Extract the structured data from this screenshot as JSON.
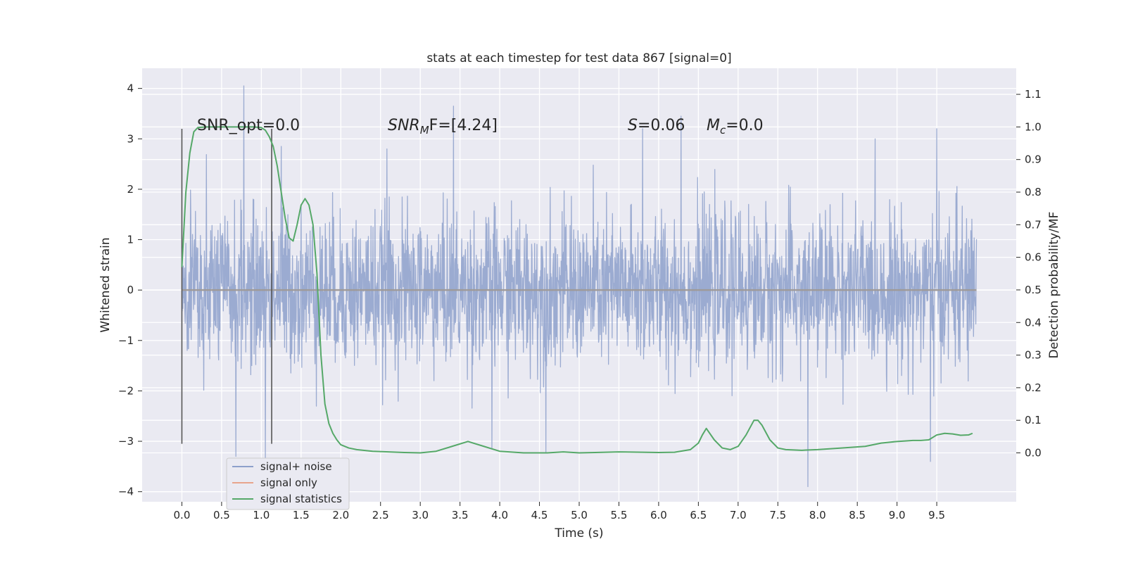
{
  "chart_data": {
    "type": "line",
    "title": "stats at each timestep for test data 867 [signal=0]",
    "xlabel": "Time (s)",
    "ylabel": "Whitened strain",
    "ylabel_right": "Detection probability/MF",
    "xlim": [
      -0.5,
      10.5
    ],
    "ylim": [
      -4.2,
      4.4
    ],
    "ylim_right": [
      -0.15,
      1.18
    ],
    "x_ticks": [
      "0.0",
      "0.5",
      "1.0",
      "1.5",
      "2.0",
      "2.5",
      "3.0",
      "3.5",
      "4.0",
      "4.5",
      "5.0",
      "5.5",
      "6.0",
      "6.5",
      "7.0",
      "7.5",
      "8.0",
      "8.5",
      "9.0",
      "9.5"
    ],
    "y_ticks": [
      "4",
      "3",
      "2",
      "1",
      "0",
      "−1",
      "−2",
      "−3",
      "−4"
    ],
    "y_ticks_right": [
      "1.1",
      "1.0",
      "0.9",
      "0.8",
      "0.7",
      "0.6",
      "0.5",
      "0.4",
      "0.3",
      "0.2",
      "0.1",
      "0.0"
    ],
    "grid": true,
    "legend_position": "bottom-left",
    "annotations": {
      "snr_opt": "SNR_opt=0.0",
      "snr_mf_label": "SNR",
      "snr_mf_sub": "M",
      "snr_mf_tail": "F=[4.24]",
      "s_label": "S",
      "s_value": "=0.06",
      "mc_label": "M",
      "mc_sub": "c",
      "mc_value": "=0.0"
    },
    "vertical_lines": [
      0.0,
      1.13
    ],
    "series": [
      {
        "name": "signal+ noise",
        "color": "#8da0cb",
        "noise_std": 0.75,
        "x_range": [
          0.0,
          10.0
        ],
        "spikes": [
          [
            0.78,
            4.05
          ],
          [
            0.68,
            -3.3
          ],
          [
            1.05,
            -3.35
          ],
          [
            3.42,
            3.65
          ],
          [
            3.9,
            -3.15
          ],
          [
            6.28,
            3.45
          ],
          [
            5.8,
            3.2
          ],
          [
            7.88,
            -3.9
          ],
          [
            9.42,
            -3.4
          ],
          [
            9.5,
            3.2
          ],
          [
            4.58,
            -3.22
          ],
          [
            2.58,
            2.8
          ],
          [
            1.25,
            2.85
          ]
        ]
      },
      {
        "name": "signal only",
        "color": "#e8a58c",
        "x": [
          0.0,
          10.0
        ],
        "values": [
          0.0,
          0.0
        ]
      },
      {
        "name": "signal statistics",
        "color": "#55a868",
        "axis": "right",
        "x": [
          0.0,
          0.05,
          0.1,
          0.15,
          0.2,
          0.3,
          0.5,
          0.7,
          0.9,
          1.0,
          1.05,
          1.1,
          1.15,
          1.2,
          1.25,
          1.3,
          1.35,
          1.4,
          1.45,
          1.5,
          1.55,
          1.6,
          1.65,
          1.7,
          1.75,
          1.8,
          1.85,
          1.9,
          1.95,
          2.0,
          2.1,
          2.2,
          2.4,
          2.6,
          2.8,
          3.0,
          3.2,
          3.4,
          3.6,
          3.8,
          4.0,
          4.3,
          4.6,
          4.8,
          5.0,
          5.2,
          5.5,
          5.8,
          6.0,
          6.2,
          6.4,
          6.5,
          6.55,
          6.6,
          6.7,
          6.8,
          6.9,
          7.0,
          7.1,
          7.2,
          7.25,
          7.3,
          7.4,
          7.5,
          7.6,
          7.8,
          8.0,
          8.3,
          8.6,
          8.8,
          9.0,
          9.2,
          9.3,
          9.4,
          9.5,
          9.6,
          9.7,
          9.8,
          9.9,
          9.95
        ],
        "values": [
          0.57,
          0.8,
          0.92,
          0.985,
          0.998,
          1.0,
          1.0,
          1.0,
          1.0,
          0.998,
          0.99,
          0.97,
          0.94,
          0.88,
          0.8,
          0.72,
          0.66,
          0.65,
          0.7,
          0.76,
          0.78,
          0.76,
          0.7,
          0.55,
          0.3,
          0.15,
          0.09,
          0.06,
          0.04,
          0.025,
          0.015,
          0.01,
          0.005,
          0.003,
          0.001,
          0.0,
          0.005,
          0.02,
          0.035,
          0.02,
          0.005,
          0.0,
          0.0,
          0.003,
          0.0,
          0.001,
          0.003,
          0.002,
          0.001,
          0.002,
          0.01,
          0.03,
          0.055,
          0.075,
          0.04,
          0.015,
          0.01,
          0.02,
          0.055,
          0.1,
          0.1,
          0.085,
          0.04,
          0.015,
          0.01,
          0.008,
          0.01,
          0.015,
          0.02,
          0.03,
          0.035,
          0.038,
          0.038,
          0.04,
          0.055,
          0.06,
          0.058,
          0.054,
          0.055,
          0.06
        ]
      }
    ]
  }
}
